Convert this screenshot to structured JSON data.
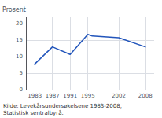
{
  "chart_data": {
    "type": "line",
    "x": [
      1983,
      1987,
      1991,
      1995,
      1996,
      2002,
      2008
    ],
    "values": [
      7.8,
      13.0,
      10.7,
      16.8,
      16.3,
      15.8,
      13.0
    ],
    "color": "#2255bb",
    "ylabel": "Prosent",
    "annotations": [
      "Kilde: Levekårsundersøkelsene 1983-2008,\nStatistisk sentralbyrå."
    ],
    "xlim": [
      1981,
      2010
    ],
    "xticks": [
      1983,
      1987,
      1991,
      1995,
      2002,
      2008
    ],
    "ylim": [
      0,
      22
    ],
    "yticks": [
      0,
      5,
      10,
      15,
      20
    ],
    "grid": true
  }
}
